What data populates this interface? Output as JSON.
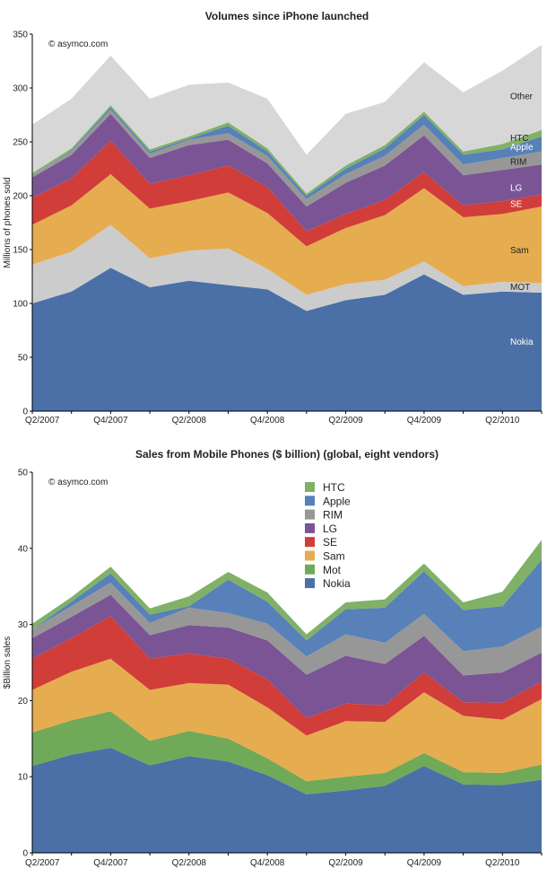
{
  "colors": {
    "Nokia": "#4a70a7",
    "Mot": "#70a958",
    "Sam": "#e6ac50",
    "SE": "#d13d39",
    "LG": "#7b5496",
    "RIM": "#979797",
    "Apple": "#5781b8",
    "HTC": "#80b167",
    "Other": "#d7d7d7"
  },
  "chart_data": [
    {
      "type": "area",
      "stacked": true,
      "title": "Volumes since iPhone launched",
      "ylabel": "Millions of phones sold",
      "watermark": "© asymco.com",
      "ylim": [
        0,
        350
      ],
      "yticks": [
        0,
        50,
        100,
        150,
        200,
        250,
        300,
        350
      ],
      "categories": [
        "Q2/2007",
        "Q3/2007",
        "Q4/2007",
        "Q1/2008",
        "Q2/2008",
        "Q3/2008",
        "Q4/2008",
        "Q1/2009",
        "Q2/2009",
        "Q3/2009",
        "Q4/2009",
        "Q1/2010",
        "Q2/2010",
        "Q3/2010"
      ],
      "xtick_labels": [
        "Q2/2007",
        "",
        "Q4/2007",
        "",
        "Q2/2008",
        "",
        "Q4/2008",
        "",
        "Q2/2009",
        "",
        "Q4/2009",
        "",
        "Q2/2010",
        ""
      ],
      "series": [
        {
          "name": "Nokia",
          "values": [
            100,
            111,
            133,
            115,
            121,
            117,
            113,
            93,
            103,
            108,
            127,
            108,
            111,
            110
          ]
        },
        {
          "name": "MOT",
          "values": [
            36,
            37,
            40,
            27,
            28,
            34,
            19,
            15,
            15,
            14,
            12,
            8,
            9,
            9
          ]
        },
        {
          "name": "Sam",
          "values": [
            37,
            43,
            47,
            46,
            46,
            52,
            52,
            45,
            52,
            60,
            68,
            64,
            63,
            71
          ]
        },
        {
          "name": "SE",
          "values": [
            25,
            25,
            31,
            23,
            24,
            25,
            24,
            14,
            13,
            14,
            15,
            11,
            12,
            11
          ]
        },
        {
          "name": "LG",
          "values": [
            19,
            22,
            25,
            24,
            28,
            24,
            22,
            23,
            29,
            32,
            34,
            28,
            29,
            28
          ]
        },
        {
          "name": "RIM",
          "values": [
            2,
            3,
            4,
            4,
            5,
            6,
            7,
            7,
            8,
            9,
            10,
            10,
            11,
            12
          ]
        },
        {
          "name": "Apple",
          "values": [
            0,
            1,
            2,
            2,
            1,
            7,
            4,
            3,
            5,
            7,
            9,
            9,
            8,
            14
          ]
        },
        {
          "name": "HTC",
          "values": [
            2,
            2,
            2,
            2,
            2,
            3,
            3,
            2,
            3,
            3,
            3,
            3,
            5,
            6
          ]
        },
        {
          "name": "Other",
          "values": [
            45,
            46,
            46,
            47,
            48,
            37,
            46,
            36,
            48,
            40,
            46,
            55,
            68,
            79
          ]
        }
      ],
      "area_labels": [
        {
          "series": "Nokia",
          "text": "Nokia",
          "value": 65
        },
        {
          "series": "MOT",
          "text": "MOT",
          "value": 116
        },
        {
          "series": "Sam",
          "text": "Sam",
          "value": 150
        },
        {
          "series": "SE",
          "text": "SE",
          "value": 193
        },
        {
          "series": "LG",
          "text": "LG",
          "value": 208
        },
        {
          "series": "RIM",
          "text": "RIM",
          "value": 232
        },
        {
          "series": "Apple",
          "text": "Apple",
          "value": 246
        },
        {
          "series": "HTC",
          "text": "HTC",
          "value": 254
        },
        {
          "series": "Other",
          "text": "Other",
          "value": 293
        }
      ]
    },
    {
      "type": "area",
      "stacked": true,
      "title": "Sales from Mobile Phones ($ billion) (global, eight vendors)",
      "ylabel": "$Billion sales",
      "watermark": "© asymco.com",
      "ylim": [
        0,
        50
      ],
      "yticks": [
        0,
        10,
        20,
        30,
        40,
        50
      ],
      "categories": [
        "Q2/2007",
        "Q3/2007",
        "Q4/2007",
        "Q1/2008",
        "Q2/2008",
        "Q3/2008",
        "Q4/2008",
        "Q1/2009",
        "Q2/2009",
        "Q3/2009",
        "Q4/2009",
        "Q1/2010",
        "Q2/2010",
        "Q3/2010"
      ],
      "xtick_labels": [
        "Q2/2007",
        "",
        "Q4/2007",
        "",
        "Q2/2008",
        "",
        "Q4/2008",
        "",
        "Q2/2009",
        "",
        "Q4/2009",
        "",
        "Q2/2010",
        ""
      ],
      "legend": {
        "position": "top-center",
        "entries": [
          "HTC",
          "Apple",
          "RIM",
          "LG",
          "SE",
          "Sam",
          "Mot",
          "Nokia"
        ]
      },
      "series": [
        {
          "name": "Nokia",
          "values": [
            11.4,
            12.9,
            13.8,
            11.5,
            12.7,
            12.0,
            10.2,
            7.7,
            8.2,
            8.8,
            11.4,
            9.0,
            8.9,
            9.6
          ]
        },
        {
          "name": "Mot",
          "values": [
            4.4,
            4.5,
            4.8,
            3.2,
            3.3,
            3.0,
            2.2,
            1.7,
            1.8,
            1.7,
            1.7,
            1.6,
            1.6,
            2.0
          ]
        },
        {
          "name": "Sam",
          "values": [
            5.6,
            6.4,
            6.9,
            6.7,
            6.3,
            7.1,
            6.7,
            6.0,
            7.3,
            6.7,
            8.0,
            7.4,
            7.0,
            8.6
          ]
        },
        {
          "name": "SE",
          "values": [
            4.1,
            4.4,
            5.6,
            4.1,
            3.9,
            3.4,
            3.7,
            2.3,
            2.3,
            2.2,
            2.6,
            1.8,
            2.2,
            2.3
          ]
        },
        {
          "name": "LG",
          "values": [
            2.7,
            2.8,
            2.8,
            3.1,
            3.7,
            4.1,
            5.1,
            5.7,
            6.3,
            5.4,
            4.8,
            3.5,
            4.0,
            3.8
          ]
        },
        {
          "name": "RIM",
          "values": [
            1.2,
            1.4,
            1.6,
            1.6,
            2.3,
            1.9,
            2.2,
            2.4,
            2.8,
            2.8,
            2.9,
            3.2,
            3.4,
            3.4
          ]
        },
        {
          "name": "Apple",
          "values": [
            0,
            0.6,
            1.2,
            1.1,
            0.2,
            4.4,
            2.9,
            2.1,
            3.3,
            4.6,
            5.6,
            5.4,
            5.3,
            8.8
          ]
        },
        {
          "name": "HTC",
          "values": [
            0.7,
            0.6,
            0.9,
            0.8,
            1.3,
            1.0,
            1.2,
            0.8,
            0.9,
            1.1,
            1.0,
            1.0,
            1.9,
            2.6
          ]
        }
      ]
    }
  ]
}
